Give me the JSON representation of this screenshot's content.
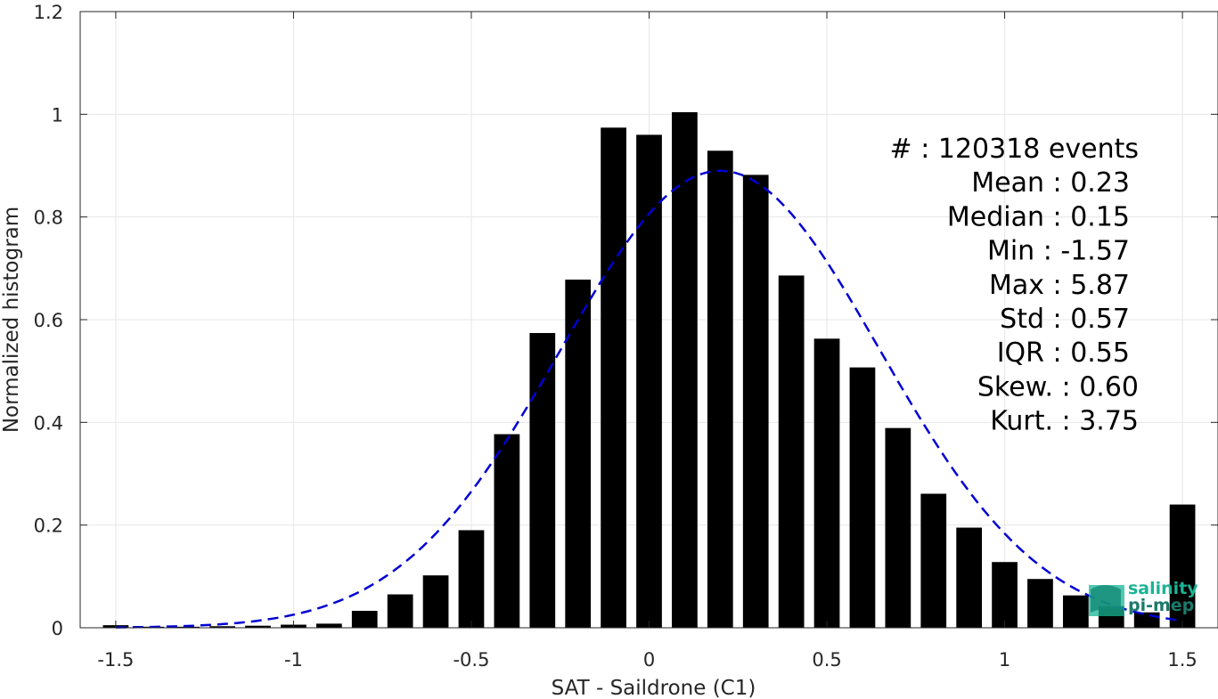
{
  "chart_data": {
    "type": "bar",
    "xlabel": "SAT - Saildrone (C1)",
    "ylabel": "Normalized histogram",
    "xlim": [
      -1.6,
      1.6
    ],
    "ylim": [
      0,
      1.2
    ],
    "x_ticks": [
      "-1.5",
      "-1",
      "-0.5",
      "0",
      "0.5",
      "1",
      "1.5"
    ],
    "y_ticks": [
      "0",
      "0.2",
      "0.4",
      "0.6",
      "0.8",
      "1",
      "1.2"
    ],
    "grid": true,
    "bar_color": "#000000",
    "bins": [
      -1.5,
      -1.4,
      -1.3,
      -1.2,
      -1.1,
      -1.0,
      -0.9,
      -0.8,
      -0.7,
      -0.6,
      -0.5,
      -0.4,
      -0.3,
      -0.2,
      -0.1,
      0.0,
      0.1,
      0.2,
      0.3,
      0.4,
      0.5,
      0.6,
      0.7,
      0.8,
      0.9,
      1.0,
      1.1,
      1.2,
      1.3,
      1.4,
      1.5
    ],
    "values": [
      0.005,
      0.002,
      0.002,
      0.003,
      0.004,
      0.006,
      0.008,
      0.033,
      0.065,
      0.102,
      0.19,
      0.377,
      0.574,
      0.678,
      0.974,
      0.96,
      1.004,
      0.929,
      0.882,
      0.686,
      0.563,
      0.507,
      0.389,
      0.261,
      0.195,
      0.128,
      0.095,
      0.063,
      0.042,
      0.03,
      0.24
    ],
    "fit": {
      "name": "",
      "color": "#0000d4",
      "style": "dashed",
      "mean": 0.2,
      "std": 0.45,
      "peak": 0.89
    },
    "stats": [
      "#  : 120318 events",
      "Mean : 0.23",
      "Median : 0.15",
      "Min : -1.57",
      "Max : 5.87",
      "Std : 0.57",
      "IQR : 0.55",
      "Skew. : 0.60",
      "Kurt. : 3.75"
    ]
  },
  "logo": {
    "line1": "salinity",
    "line2": "pi-mep",
    "color1": "#1ab394",
    "color2": "#1a7a6a"
  }
}
